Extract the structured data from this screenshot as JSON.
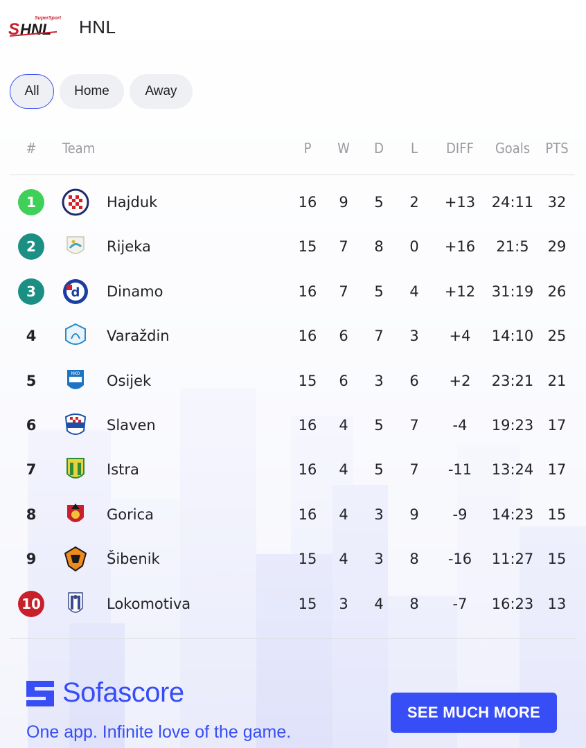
{
  "league": {
    "name": "HNL",
    "logo_text": "SHNL",
    "logo_subtext": "SuperSport"
  },
  "tabs": [
    {
      "label": "All",
      "active": true
    },
    {
      "label": "Home",
      "active": false
    },
    {
      "label": "Away",
      "active": false
    }
  ],
  "table": {
    "headers": {
      "pos": "#",
      "team": "Team",
      "p": "P",
      "w": "W",
      "d": "D",
      "l": "L",
      "diff": "DIFF",
      "goals": "Goals",
      "pts": "PTS"
    },
    "rows": [
      {
        "pos": "1",
        "team": "Hajduk",
        "p": "16",
        "w": "9",
        "d": "5",
        "l": "2",
        "diff": "+13",
        "goals": "24:11",
        "pts": "32",
        "badge_color": "#3fd05a",
        "logo": "hajduk-crest"
      },
      {
        "pos": "2",
        "team": "Rijeka",
        "p": "15",
        "w": "7",
        "d": "8",
        "l": "0",
        "diff": "+16",
        "goals": "21:5",
        "pts": "29",
        "badge_color": "#1b8f83",
        "logo": "rijeka-crest"
      },
      {
        "pos": "3",
        "team": "Dinamo",
        "p": "16",
        "w": "7",
        "d": "5",
        "l": "4",
        "diff": "+12",
        "goals": "31:19",
        "pts": "26",
        "badge_color": "#1b8f83",
        "logo": "dinamo-crest"
      },
      {
        "pos": "4",
        "team": "Varaždin",
        "p": "16",
        "w": "6",
        "d": "7",
        "l": "3",
        "diff": "+4",
        "goals": "14:10",
        "pts": "25",
        "badge_color": "",
        "logo": "varazdin-crest"
      },
      {
        "pos": "5",
        "team": "Osijek",
        "p": "15",
        "w": "6",
        "d": "3",
        "l": "6",
        "diff": "+2",
        "goals": "23:21",
        "pts": "21",
        "badge_color": "",
        "logo": "osijek-crest"
      },
      {
        "pos": "6",
        "team": "Slaven",
        "p": "16",
        "w": "4",
        "d": "5",
        "l": "7",
        "diff": "-4",
        "goals": "19:23",
        "pts": "17",
        "badge_color": "",
        "logo": "slaven-crest"
      },
      {
        "pos": "7",
        "team": "Istra",
        "p": "16",
        "w": "4",
        "d": "5",
        "l": "7",
        "diff": "-11",
        "goals": "13:24",
        "pts": "17",
        "badge_color": "",
        "logo": "istra-crest"
      },
      {
        "pos": "8",
        "team": "Gorica",
        "p": "16",
        "w": "4",
        "d": "3",
        "l": "9",
        "diff": "-9",
        "goals": "14:23",
        "pts": "15",
        "badge_color": "",
        "logo": "gorica-crest"
      },
      {
        "pos": "9",
        "team": "Šibenik",
        "p": "15",
        "w": "4",
        "d": "3",
        "l": "8",
        "diff": "-16",
        "goals": "11:27",
        "pts": "15",
        "badge_color": "",
        "logo": "sibenik-crest"
      },
      {
        "pos": "10",
        "team": "Lokomotiva",
        "p": "15",
        "w": "3",
        "d": "4",
        "l": "8",
        "diff": "-7",
        "goals": "16:23",
        "pts": "13",
        "badge_color": "#c8202b",
        "logo": "lokomotiva-crest"
      }
    ]
  },
  "footer": {
    "brand": "Sofascore",
    "tagline": "One app. Infinite love of the game.",
    "cta_label": "SEE MUCH MORE",
    "accent_color": "#374df5"
  }
}
